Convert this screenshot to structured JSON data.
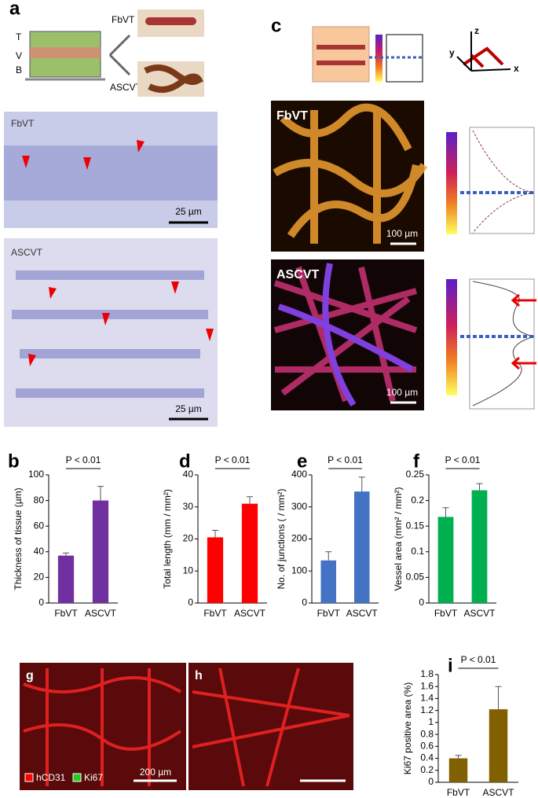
{
  "panel_a": {
    "label": "a",
    "layers": [
      "T",
      "V",
      "B"
    ],
    "schemes": [
      "FbVT",
      "ASCVT"
    ],
    "micrographs": [
      {
        "name": "FbVT",
        "scale": "25 µm"
      },
      {
        "name": "ASCVT",
        "scale": "25 µm"
      }
    ]
  },
  "panel_c": {
    "label": "c",
    "axes": [
      "z",
      "y",
      "x"
    ],
    "images": [
      {
        "name": "FbVT",
        "scale": "100 µm"
      },
      {
        "name": "ASCVT",
        "scale": "100 µm"
      }
    ]
  },
  "panel_g": {
    "label": "g",
    "legend": [
      "hCD31",
      "Ki67"
    ],
    "scale": "200 µm"
  },
  "panel_h": {
    "label": "h"
  },
  "chart_data": [
    {
      "type": "bar",
      "panel": "b",
      "title": "P < 0.01",
      "y_label": "Thickness of tissue (µm)",
      "categories": [
        "FbVT",
        "ASCVT"
      ],
      "values": [
        37,
        80
      ],
      "errors": [
        2,
        11
      ],
      "color": "#7030a0",
      "ylim": [
        0,
        100
      ],
      "yticks": [
        0,
        20,
        40,
        60,
        80,
        100
      ]
    },
    {
      "type": "bar",
      "panel": "d",
      "title": "P < 0.01",
      "y_label": "Total length (mm / mm²)",
      "categories": [
        "FbVT",
        "ASCVT"
      ],
      "values": [
        20.5,
        31
      ],
      "errors": [
        2.2,
        2.2
      ],
      "color": "#ff0000",
      "ylim": [
        0,
        40
      ],
      "yticks": [
        0,
        10,
        20,
        30,
        40
      ]
    },
    {
      "type": "bar",
      "panel": "e",
      "title": "P < 0.01",
      "y_label": "No. of junctions ( / mm²)",
      "categories": [
        "FbVT",
        "ASCVT"
      ],
      "values": [
        133,
        348
      ],
      "errors": [
        27,
        45
      ],
      "color": "#4472c4",
      "ylim": [
        0,
        400
      ],
      "yticks": [
        0,
        100,
        200,
        300,
        400
      ]
    },
    {
      "type": "bar",
      "panel": "f",
      "title": "P < 0.01",
      "y_label": "Vessel area (mm² / mm²)",
      "categories": [
        "FbVT",
        "ASCVT"
      ],
      "values": [
        0.168,
        0.22
      ],
      "errors": [
        0.018,
        0.013
      ],
      "color": "#00b050",
      "ylim": [
        0,
        0.25
      ],
      "yticks": [
        0,
        0.05,
        0.1,
        0.15,
        0.2,
        0.25
      ]
    },
    {
      "type": "bar",
      "panel": "i",
      "title": "P < 0.01",
      "y_label": "Ki67 positive area (%)",
      "categories": [
        "FbVT",
        "ASCVT"
      ],
      "values": [
        0.4,
        1.22
      ],
      "errors": [
        0.05,
        0.38
      ],
      "color": "#806000",
      "ylim": [
        0,
        1.8
      ],
      "yticks": [
        0,
        0.2,
        0.4,
        0.6,
        0.8,
        1,
        1.2,
        1.4,
        1.6,
        1.8
      ]
    }
  ]
}
